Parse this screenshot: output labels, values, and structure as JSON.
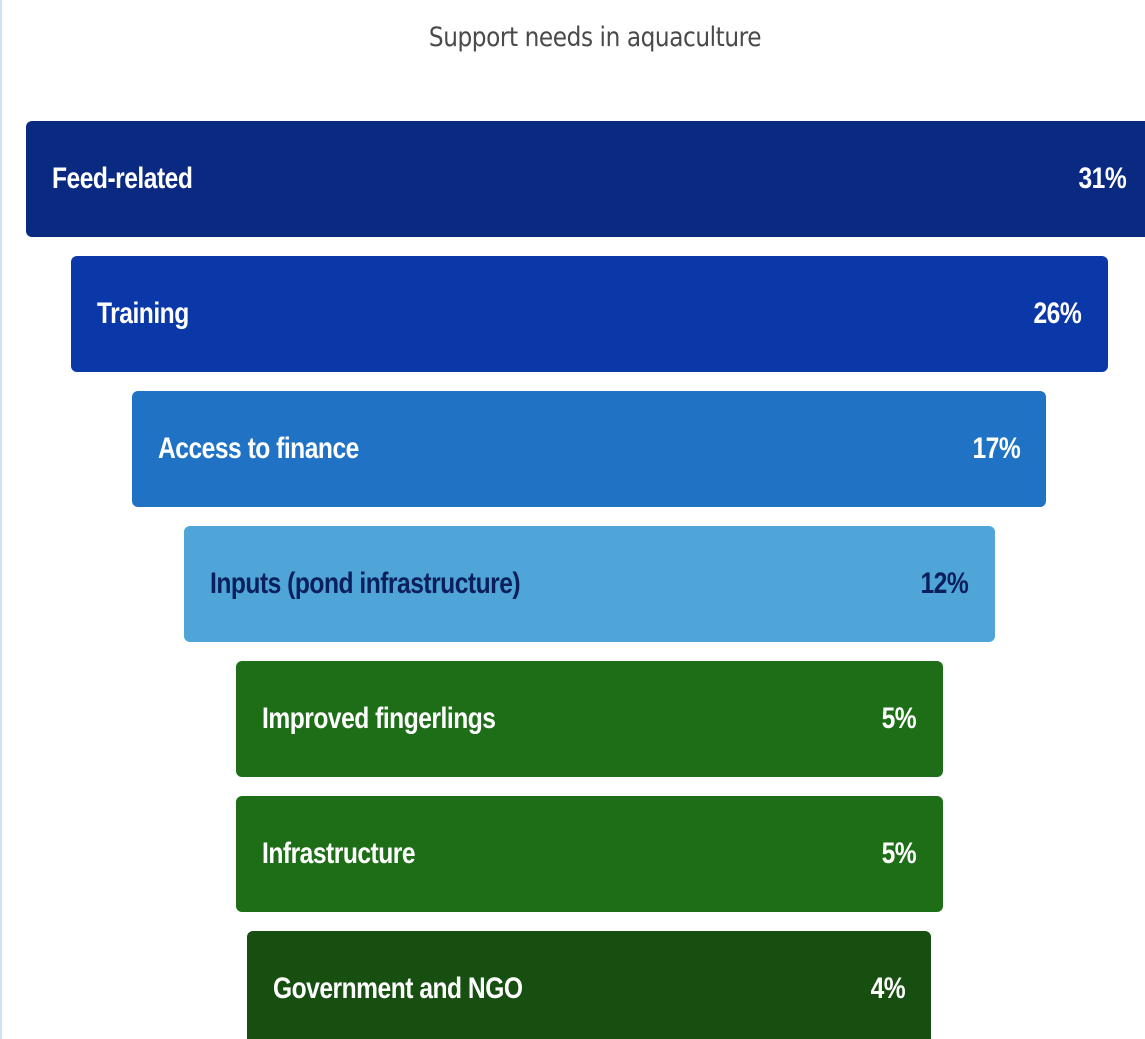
{
  "chart_data": {
    "type": "funnel",
    "title": "Support needs in aquaculture",
    "value_unit": "%",
    "stages": [
      {
        "label": "Feed-related",
        "value": 31,
        "value_label": "31%",
        "color": "#0a2a82",
        "text_color": "#ffffff"
      },
      {
        "label": "Training",
        "value": 26,
        "value_label": "26%",
        "color": "#0b38a8",
        "text_color": "#ffffff"
      },
      {
        "label": "Access to finance",
        "value": 17,
        "value_label": "17%",
        "color": "#1f72c4",
        "text_color": "#ffffff"
      },
      {
        "label": "Inputs (pond infrastructure)",
        "value": 12,
        "value_label": "12%",
        "color": "#4fa5d7",
        "text_color": "#0a1f5c"
      },
      {
        "label": "Improved fingerlings",
        "value": 5,
        "value_label": "5%",
        "color": "#1e6e18",
        "text_color": "#ffffff"
      },
      {
        "label": "Infrastructure",
        "value": 5,
        "value_label": "5%",
        "color": "#1e6e18",
        "text_color": "#ffffff"
      },
      {
        "label": "Government and NGO",
        "value": 4,
        "value_label": "4%",
        "color": "#174f10",
        "text_color": "#ffffff"
      }
    ]
  }
}
